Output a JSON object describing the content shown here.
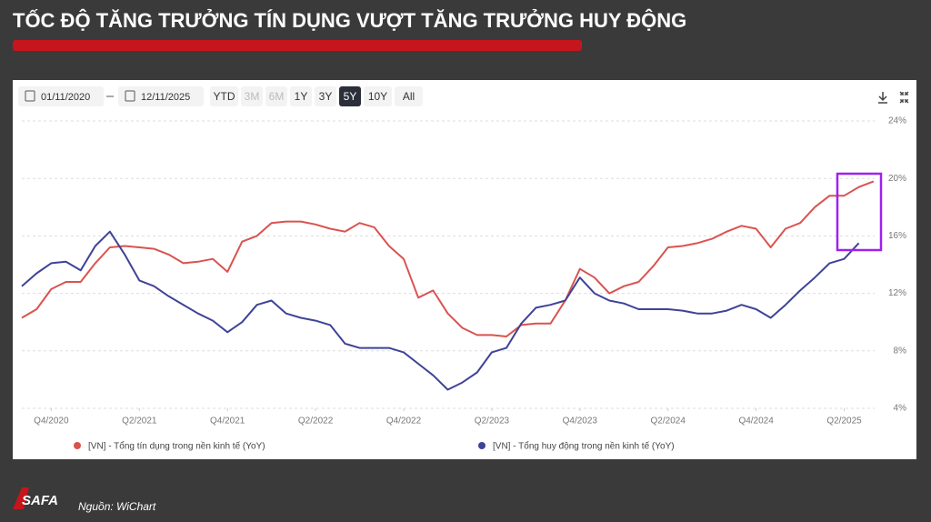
{
  "slide": {
    "title": "TỐC ĐỘ TĂNG TRƯỞNG TÍN DỤNG VƯỢT TĂNG TRƯỞNG HUY ĐỘNG"
  },
  "toolbar": {
    "start_date": "01/11/2020",
    "end_date": "12/11/2025",
    "ranges": [
      "YTD",
      "3M",
      "6M",
      "1Y",
      "3Y",
      "5Y",
      "10Y",
      "All"
    ],
    "disabled": [
      "3M",
      "6M"
    ],
    "active": "5Y"
  },
  "chart_data": {
    "type": "line",
    "x": [
      2020.583,
      2020.667,
      2020.75,
      2020.833,
      2020.917,
      2021,
      2021.083,
      2021.167,
      2021.25,
      2021.333,
      2021.417,
      2021.5,
      2021.583,
      2021.667,
      2021.75,
      2021.833,
      2021.917,
      2022,
      2022.083,
      2022.167,
      2022.25,
      2022.333,
      2022.417,
      2022.5,
      2022.583,
      2022.667,
      2022.75,
      2022.833,
      2022.917,
      2023,
      2023.083,
      2023.167,
      2023.25,
      2023.333,
      2023.417,
      2023.5,
      2023.583,
      2023.667,
      2023.75,
      2023.833,
      2023.917,
      2024,
      2024.083,
      2024.167,
      2024.25,
      2024.333,
      2024.417,
      2024.5,
      2024.583,
      2024.667,
      2024.75,
      2024.833,
      2024.917,
      2025,
      2025.083,
      2025.167,
      2025.25,
      2025.333,
      2025.417
    ],
    "series": [
      {
        "name": "[VN] - Tổng tín dụng trong nền kinh tế (YoY)",
        "color": "#d9534f",
        "values": [
          10.3,
          10.9,
          12.3,
          12.8,
          12.8,
          14.1,
          15.2,
          15.3,
          15.2,
          15.1,
          14.7,
          14.1,
          14.2,
          14.4,
          13.5,
          15.6,
          16.0,
          16.9,
          17.0,
          17.0,
          16.8,
          16.5,
          16.3,
          16.9,
          16.6,
          15.3,
          14.4,
          11.7,
          12.2,
          10.6,
          9.6,
          9.1,
          9.1,
          9.0,
          9.8,
          9.9,
          9.9,
          11.5,
          13.7,
          13.1,
          12.0,
          12.5,
          12.8,
          13.9,
          15.2,
          15.3,
          15.5,
          15.8,
          16.3,
          16.7,
          16.5,
          15.2,
          16.5,
          16.9,
          18.0,
          18.8,
          18.8,
          19.4,
          19.8
        ]
      },
      {
        "name": "[VN] - Tổng huy động trong nền kinh tế (YoY)",
        "color": "#3f4396",
        "values": [
          12.5,
          13.4,
          14.1,
          14.2,
          13.6,
          15.3,
          16.3,
          14.7,
          12.9,
          12.5,
          11.8,
          11.2,
          10.6,
          10.1,
          9.3,
          10.0,
          11.2,
          11.5,
          10.6,
          10.3,
          10.1,
          9.8,
          8.5,
          8.2,
          8.2,
          8.2,
          7.9,
          7.1,
          6.3,
          5.3,
          5.8,
          6.5,
          7.9,
          8.2,
          9.9,
          11.0,
          11.2,
          11.5,
          13.1,
          12.0,
          11.5,
          11.3,
          10.9,
          10.9,
          10.9,
          10.8,
          10.6,
          10.6,
          10.8,
          11.2,
          10.9,
          10.3,
          11.2,
          12.2,
          13.1,
          14.1,
          14.4,
          15.5,
          null
        ]
      }
    ],
    "xlim": [
      2020.583,
      2025.5
    ],
    "xticks": [
      {
        "value": 2020.75,
        "label": "Q4/2020"
      },
      {
        "value": 2021.25,
        "label": "Q2/2021"
      },
      {
        "value": 2021.75,
        "label": "Q4/2021"
      },
      {
        "value": 2022.25,
        "label": "Q2/2022"
      },
      {
        "value": 2022.75,
        "label": "Q4/2022"
      },
      {
        "value": 2023.25,
        "label": "Q2/2023"
      },
      {
        "value": 2023.75,
        "label": "Q4/2023"
      },
      {
        "value": 2024.25,
        "label": "Q2/2024"
      },
      {
        "value": 2024.75,
        "label": "Q4/2024"
      },
      {
        "value": 2025.25,
        "label": "Q2/2025"
      }
    ],
    "ylim": [
      4,
      24
    ],
    "yticks": [
      {
        "value": 4,
        "label": "4%"
      },
      {
        "value": 8,
        "label": "8%"
      },
      {
        "value": 12,
        "label": "12%"
      },
      {
        "value": 16,
        "label": "16%"
      },
      {
        "value": 20,
        "label": "20%"
      },
      {
        "value": 24,
        "label": "24%"
      }
    ],
    "grid": true,
    "legend": "bottom"
  },
  "footer": {
    "logo": "SAFA",
    "source": "Nguồn: WiChart"
  }
}
